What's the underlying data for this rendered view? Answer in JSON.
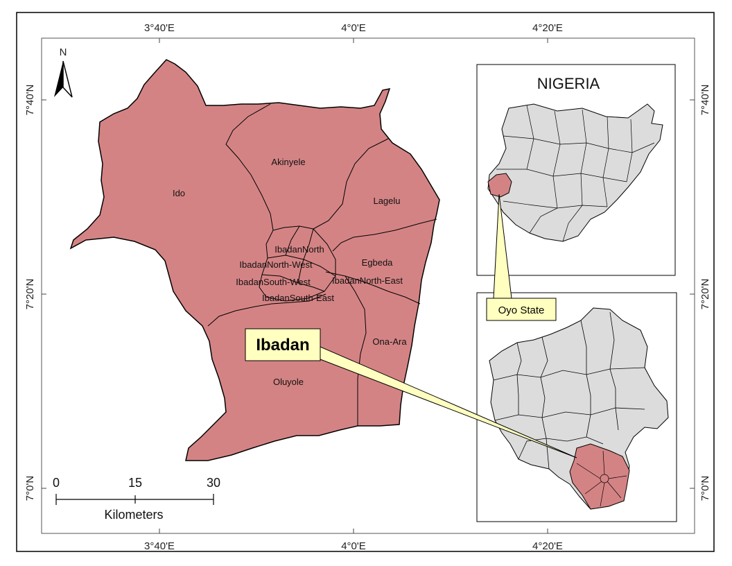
{
  "map": {
    "top_ticks": [
      "3°40'E",
      "4°0'E",
      "4°20'E"
    ],
    "bottom_ticks": [
      "3°40'E",
      "4°0'E",
      "4°20'E"
    ],
    "left_ticks": [
      "7°40'N",
      "7°20'N",
      "7°0'N"
    ],
    "right_ticks": [
      "7°40'N",
      "7°20'N",
      "7°0'N"
    ],
    "north_label": "N",
    "lga_labels": {
      "akinyele": "Akinyele",
      "ido": "Ido",
      "lagelu": "Lagelu",
      "ibadan_north": "IbadanNorth",
      "egbeda": "Egbeda",
      "ibadan_north_west": "IbadanNorth-West",
      "ibadan_south_west": "IbadanSouth-West",
      "ibadan_north_east": "IbadanNorth-East",
      "ibadan_south_east": "IbadanSouth-East",
      "ona_ara": "Ona-Ara",
      "oluyole": "Oluyole"
    },
    "callout_main": "Ibadan",
    "inset_country_title": "NIGERIA",
    "callout_state": "Oyo State",
    "scale_bar": {
      "labels": [
        "0",
        "15",
        "30"
      ],
      "unit": "Kilometers"
    },
    "colors": {
      "highlight": "#d48384",
      "context": "#dcdcdc",
      "callout_fill": "#ffffc0"
    }
  }
}
